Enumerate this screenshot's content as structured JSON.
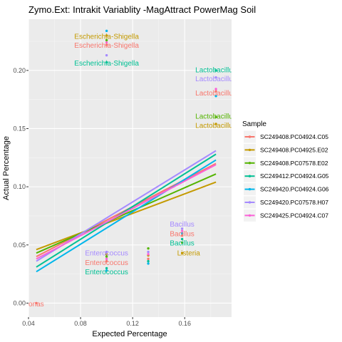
{
  "chart_data": {
    "type": "scatter",
    "title": "Zymo.Ext: Intrakit Variablity -MagAttract PowerMag Soil",
    "xlabel": "Expected Percentage",
    "ylabel": "Actual Percentage",
    "xlim": [
      0.04,
      0.196
    ],
    "ylim": [
      -0.012,
      0.244
    ],
    "x_ticks": [
      0.04,
      0.08,
      0.12,
      0.16
    ],
    "x_tick_labels": [
      "0.04",
      "0.08",
      "0.12",
      "0.16"
    ],
    "y_ticks": [
      0.0,
      0.05,
      0.1,
      0.15,
      0.2
    ],
    "y_tick_labels": [
      "0.00",
      "0.05",
      "0.10",
      "0.15",
      "0.20"
    ],
    "grid": true,
    "legend_title": "Sample",
    "legend_position": "right",
    "series": [
      {
        "name": "SC249408.PC04924.C05",
        "color": "#F8766D",
        "points": [
          [
            0.1,
            0.222
          ],
          [
            0.132,
            0.038
          ],
          [
            0.158,
            0.058
          ],
          [
            0.184,
            0.182
          ],
          [
            0.1,
            0.036
          ],
          [
            0.046,
            0.0
          ]
        ],
        "fit": [
          [
            0.046,
            0.04
          ],
          [
            0.184,
            0.12
          ]
        ]
      },
      {
        "name": "SC249408.PC04925.E02",
        "color": "#C49A00",
        "points": [
          [
            0.1,
            0.23
          ],
          [
            0.132,
            0.041
          ],
          [
            0.158,
            0.043
          ],
          [
            0.184,
            0.154
          ],
          [
            0.1,
            0.042
          ]
        ],
        "fit": [
          [
            0.046,
            0.046
          ],
          [
            0.184,
            0.104
          ]
        ]
      },
      {
        "name": "SC249408.PC07578.E02",
        "color": "#53B400",
        "points": [
          [
            0.1,
            0.226
          ],
          [
            0.132,
            0.047
          ],
          [
            0.158,
            0.052
          ],
          [
            0.184,
            0.16
          ],
          [
            0.1,
            0.04
          ]
        ],
        "fit": [
          [
            0.046,
            0.043
          ],
          [
            0.184,
            0.111
          ]
        ]
      },
      {
        "name": "SC249412.PC04924.G05",
        "color": "#00C094",
        "points": [
          [
            0.1,
            0.207
          ],
          [
            0.132,
            0.036
          ],
          [
            0.158,
            0.055
          ],
          [
            0.184,
            0.2
          ],
          [
            0.1,
            0.03
          ]
        ],
        "fit": [
          [
            0.046,
            0.031
          ],
          [
            0.184,
            0.128
          ]
        ]
      },
      {
        "name": "SC249420.PC04924.G06",
        "color": "#00B6EB",
        "points": [
          [
            0.1,
            0.234
          ],
          [
            0.132,
            0.034
          ],
          [
            0.158,
            0.06
          ],
          [
            0.184,
            0.178
          ],
          [
            0.1,
            0.028
          ]
        ],
        "fit": [
          [
            0.046,
            0.027
          ],
          [
            0.184,
            0.123
          ]
        ]
      },
      {
        "name": "SC249420.PC07578.H07",
        "color": "#A58AFF",
        "points": [
          [
            0.1,
            0.213
          ],
          [
            0.132,
            0.044
          ],
          [
            0.158,
            0.064
          ],
          [
            0.184,
            0.194
          ],
          [
            0.1,
            0.044
          ]
        ],
        "fit": [
          [
            0.046,
            0.036
          ],
          [
            0.184,
            0.131
          ]
        ]
      },
      {
        "name": "SC249425.PC04924.C07",
        "color": "#FB61D7",
        "points": [
          [
            0.1,
            0.224
          ],
          [
            0.132,
            0.042
          ],
          [
            0.158,
            0.062
          ],
          [
            0.184,
            0.184
          ],
          [
            0.1,
            0.038
          ]
        ],
        "fit": [
          [
            0.046,
            0.038
          ],
          [
            0.184,
            0.119
          ]
        ]
      }
    ],
    "annotations": [
      {
        "text": "Escherichia-Shigella",
        "x": 0.1,
        "y": 0.2292,
        "color": "#C49A00"
      },
      {
        "text": "Escherichia-Shigella",
        "x": 0.1,
        "y": 0.2215,
        "color": "#F8766D"
      },
      {
        "text": "Escherichia-Shigella",
        "x": 0.1,
        "y": 0.2064,
        "color": "#00C094"
      },
      {
        "text": "Lactobacillus",
        "x": 0.184,
        "y": 0.2005,
        "color": "#00C094"
      },
      {
        "text": "Lactobacillus",
        "x": 0.184,
        "y": 0.1928,
        "color": "#A58AFF"
      },
      {
        "text": "Lactobacillus",
        "x": 0.184,
        "y": 0.1807,
        "color": "#F8766D"
      },
      {
        "text": "Lactobacillus",
        "x": 0.184,
        "y": 0.1606,
        "color": "#53B400"
      },
      {
        "text": "Lactobacillus",
        "x": 0.184,
        "y": 0.1527,
        "color": "#C49A00"
      },
      {
        "text": "Bacillus",
        "x": 0.158,
        "y": 0.0678,
        "color": "#A58AFF"
      },
      {
        "text": "Bacillus",
        "x": 0.158,
        "y": 0.0598,
        "color": "#F8766D"
      },
      {
        "text": "Bacillus",
        "x": 0.158,
        "y": 0.0517,
        "color": "#00C094"
      },
      {
        "text": "Listeria",
        "x": 0.163,
        "y": 0.043,
        "color": "#C49A00"
      },
      {
        "text": "Enterococcus",
        "x": 0.1,
        "y": 0.043,
        "color": "#A58AFF"
      },
      {
        "text": "Enterococcus",
        "x": 0.1,
        "y": 0.035,
        "color": "#F8766D"
      },
      {
        "text": "Enterococcus",
        "x": 0.1,
        "y": 0.0268,
        "color": "#00C094"
      },
      {
        "text": "idomonas",
        "x": 0.04,
        "y": -0.0007,
        "color": "#F8766D"
      }
    ]
  }
}
